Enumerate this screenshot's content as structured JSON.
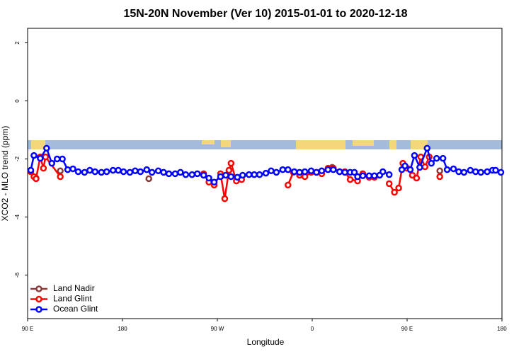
{
  "chart_data": {
    "type": "line",
    "title": "15N-20N November (Ver 10)   2015-01-01 to 2020-12-18",
    "xlabel": "Longitude",
    "ylabel": "XCO2 - MLO trend (ppm)",
    "xlim": [
      90,
      540
    ],
    "xticks": [
      {
        "value": 90,
        "label": "90 E"
      },
      {
        "value": 180,
        "label": "180"
      },
      {
        "value": 270,
        "label": "90 W"
      },
      {
        "value": 360,
        "label": "0"
      },
      {
        "value": 450,
        "label": "90 E"
      },
      {
        "value": 540,
        "label": "180"
      }
    ],
    "ylim": [
      -7.5,
      2.5
    ],
    "yticks": [
      -6,
      -4,
      -2,
      0,
      2
    ],
    "legend": "bottom-left",
    "series": [
      {
        "name": "Land Nadir",
        "color": "#8b3a3a",
        "x": [
          93,
          98,
          110,
          121,
          150,
          205,
          300,
          379,
          430,
          481
        ],
        "values": [
          -2.39,
          -2.66,
          null,
          -2.41,
          null,
          -2.68,
          null,
          -2.29,
          null,
          -2.41
        ]
      },
      {
        "name": "Land Glint",
        "color": "#ff0000",
        "x": [
          93,
          96,
          98,
          102,
          105,
          107,
          121,
          200,
          257,
          262,
          267,
          273,
          277,
          281,
          283,
          288,
          293,
          310,
          337,
          342,
          348,
          353,
          359,
          364,
          369,
          375,
          380,
          386,
          391,
          396,
          403,
          408,
          414,
          419,
          425,
          433,
          438,
          442,
          446,
          450,
          455,
          459,
          463,
          467,
          471,
          476,
          481
        ],
        "values": [
          -2.44,
          -2.61,
          -2.68,
          -1.93,
          -2.32,
          -1.93,
          -2.61,
          null,
          -2.51,
          -2.8,
          -2.9,
          -2.51,
          -3.37,
          -2.39,
          -2.15,
          -2.76,
          -2.71,
          null,
          -2.9,
          -2.46,
          -2.56,
          -2.61,
          -2.46,
          -2.46,
          -2.51,
          -2.32,
          -2.32,
          -2.44,
          -2.44,
          -2.71,
          -2.76,
          -2.51,
          -2.63,
          -2.63,
          null,
          -2.85,
          -3.15,
          -3.0,
          -2.15,
          -2.32,
          -2.56,
          -2.66,
          -1.93,
          -2.27,
          -1.93,
          null,
          -2.61
        ]
      },
      {
        "name": "Ocean Glint",
        "color": "#0000ff",
        "x": [
          93,
          96,
          102,
          108,
          113,
          118,
          123,
          128,
          133,
          138,
          144,
          149,
          154,
          160,
          165,
          171,
          176,
          181,
          187,
          192,
          197,
          203,
          208,
          214,
          219,
          224,
          230,
          235,
          240,
          246,
          251,
          257,
          262,
          267,
          273,
          278,
          283,
          289,
          294,
          300,
          305,
          310,
          316,
          321,
          326,
          332,
          337,
          343,
          348,
          353,
          359,
          364,
          369,
          375,
          380,
          386,
          391,
          396,
          400,
          403,
          408,
          414,
          419,
          424,
          427,
          433,
          439,
          445,
          448,
          453,
          457,
          462,
          469,
          473,
          478,
          484,
          488,
          494,
          499,
          504,
          510,
          515,
          520,
          526,
          531,
          534,
          539
        ],
        "values": [
          -2.39,
          -1.88,
          -1.98,
          -1.63,
          -2.15,
          -2.0,
          -2.0,
          -2.37,
          -2.34,
          -2.44,
          -2.46,
          -2.39,
          -2.44,
          -2.46,
          -2.44,
          -2.39,
          -2.39,
          -2.44,
          -2.46,
          -2.41,
          -2.44,
          -2.37,
          -2.46,
          -2.41,
          -2.46,
          -2.51,
          -2.51,
          -2.46,
          -2.54,
          -2.54,
          -2.51,
          -2.56,
          -2.66,
          -2.8,
          -2.61,
          -2.56,
          -2.61,
          -2.63,
          -2.56,
          -2.54,
          -2.54,
          -2.54,
          -2.49,
          -2.41,
          -2.46,
          -2.37,
          -2.37,
          -2.44,
          -2.46,
          -2.44,
          -2.41,
          -2.46,
          -2.41,
          -2.37,
          -2.37,
          -2.44,
          -2.46,
          -2.46,
          -2.46,
          -2.61,
          -2.58,
          -2.58,
          -2.58,
          -2.56,
          -2.44,
          -2.54,
          null,
          -2.37,
          -2.24,
          -2.37,
          -1.88,
          -2.29,
          -1.63,
          -2.15,
          -1.98,
          -1.98,
          -2.37,
          -2.34,
          -2.44,
          -2.46,
          -2.39,
          -2.44,
          -2.46,
          -2.44,
          -2.39,
          -2.39,
          -2.46
        ]
      }
    ]
  }
}
